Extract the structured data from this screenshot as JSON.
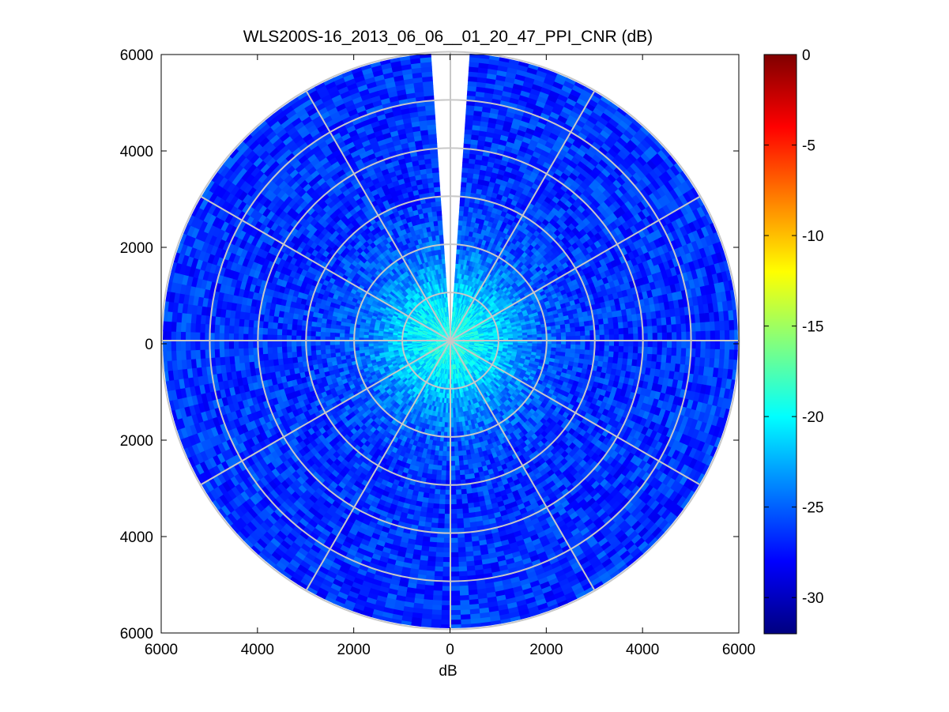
{
  "chart_data": {
    "type": "heatmap",
    "subtype": "polar-ppi",
    "title": "WLS200S-16_2013_06_06__01_20_47_PPI_CNR (dB)",
    "xlabel": "dB",
    "ylabel": "",
    "x_range": [
      -6000,
      6000
    ],
    "y_range": [
      -6000,
      6000
    ],
    "x_tick_values": [
      -6000,
      -4000,
      -2000,
      0,
      2000,
      4000,
      6000
    ],
    "x_tick_labels": [
      "6000",
      "4000",
      "2000",
      "0",
      "2000",
      "4000",
      "6000"
    ],
    "y_tick_values": [
      6000,
      4000,
      2000,
      0,
      -2000,
      -4000,
      -6000
    ],
    "y_tick_labels": [
      "6000",
      "4000",
      "2000",
      "0",
      "2000",
      "4000",
      "6000"
    ],
    "max_range": 6000,
    "range_rings": [
      1000,
      2000,
      3000,
      4000,
      5000,
      6000
    ],
    "spokes_deg": [
      0,
      30,
      60,
      90,
      120,
      150,
      180,
      210,
      240,
      270,
      300,
      330
    ],
    "missing_sector_deg": [
      -4,
      4
    ],
    "grid": true,
    "colorbar": {
      "position": "right",
      "colormap": "jet",
      "clim": [
        -32,
        0
      ],
      "tick_values": [
        0,
        -5,
        -10,
        -15,
        -20,
        -25,
        -30
      ],
      "tick_labels": [
        "0",
        "-5",
        "-10",
        "-15",
        "-20",
        "-25",
        "-30"
      ]
    },
    "radial_profile": [
      {
        "range": 0,
        "cnr": -19
      },
      {
        "range": 500,
        "cnr": -20
      },
      {
        "range": 1000,
        "cnr": -21.5
      },
      {
        "range": 1500,
        "cnr": -23.5
      },
      {
        "range": 2000,
        "cnr": -25
      },
      {
        "range": 3000,
        "cnr": -26.5
      },
      {
        "range": 4000,
        "cnr": -26.5
      },
      {
        "range": 5000,
        "cnr": -26.5
      },
      {
        "range": 6000,
        "cnr": -26.5
      }
    ]
  }
}
